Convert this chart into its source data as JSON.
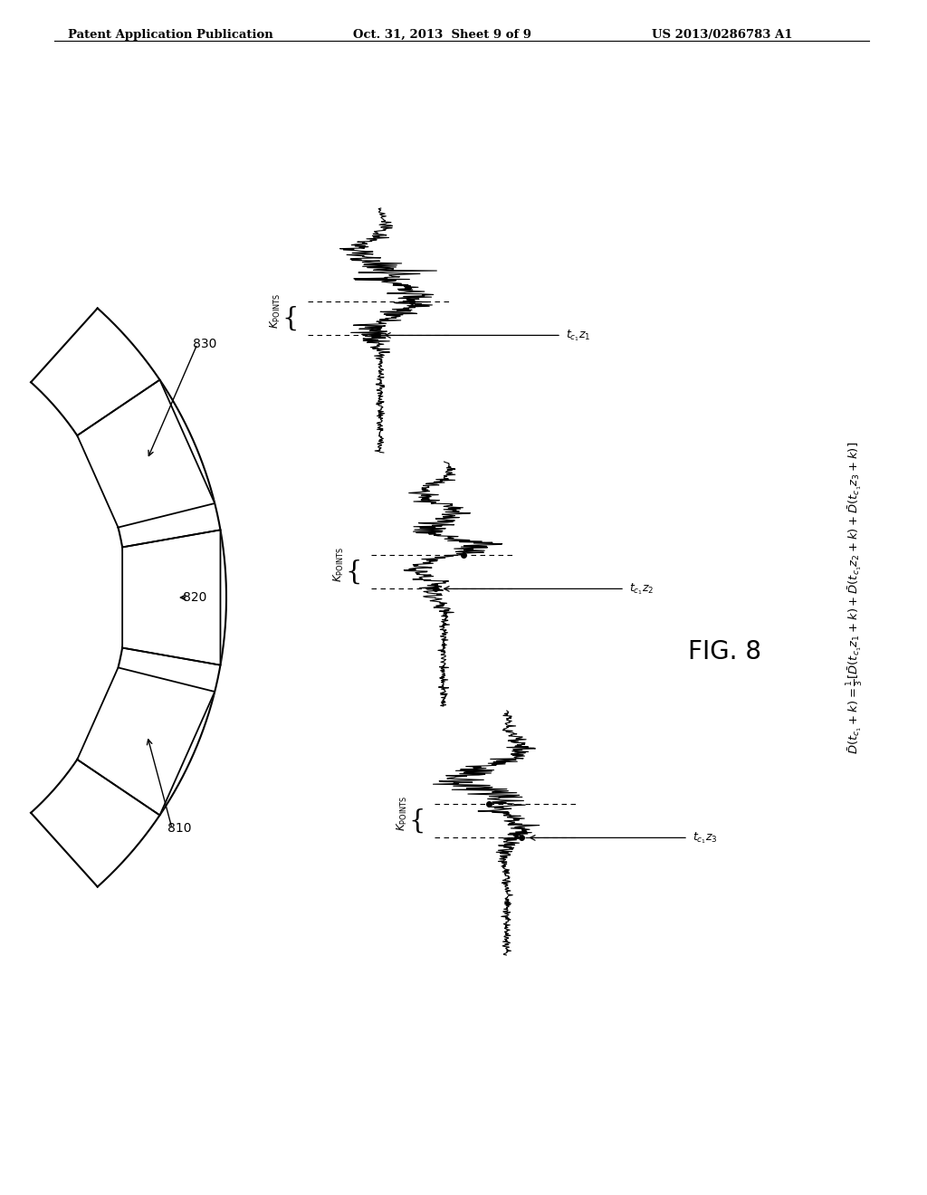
{
  "header_left": "Patent Application Publication",
  "header_center": "Oct. 31, 2013  Sheet 9 of 9",
  "header_right": "US 2013/0286783 A1",
  "bg_color": "#ffffff",
  "fig_label": "FIG. 8",
  "sensor_labels": [
    "810",
    "820",
    "830"
  ],
  "tc_labels": [
    "$t_{c_1}z_1$",
    "$t_{c_1}z_2$",
    "$t_{c_1}z_3$"
  ],
  "kpoints_label": "$K_{\\mathrm{POINTS}}$",
  "formula_line1": "$\\bar{D}(t_{c_1}+k)=\\frac{1}{3}[\\bar{D}(t_{c_1}z_1+k)+\\bar{D}(t_{c_1}z_2+k)+\\bar{D}(t_{c_1}z_3+k)]$"
}
